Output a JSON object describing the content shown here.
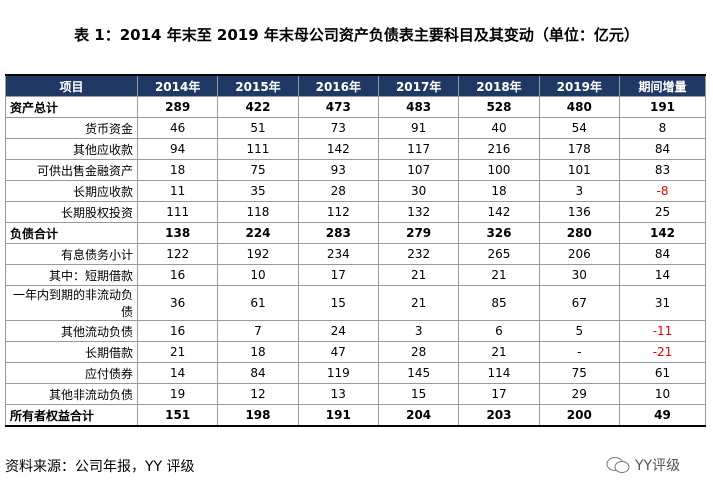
{
  "title": "表 1：2014 年末至 2019 年末母公司资产负债表主要科目及其变动（单位：亿元）",
  "table": {
    "header": [
      "项目",
      "2014年",
      "2015年",
      "2016年",
      "2017年",
      "2018年",
      "2019年",
      "期间增量"
    ],
    "rows": [
      [
        "资产总计",
        289,
        422,
        473,
        483,
        528,
        480,
        191
      ],
      [
        "货币资金",
        46,
        51,
        73,
        91,
        40,
        54,
        8
      ],
      [
        "其他应收款",
        94,
        111,
        142,
        117,
        216,
        178,
        84
      ],
      [
        "可供出售金融资产",
        18,
        75,
        93,
        107,
        100,
        101,
        83
      ],
      [
        "长期应收款",
        11,
        35,
        28,
        30,
        18,
        3,
        -8
      ],
      [
        "长期股权投资",
        111,
        118,
        112,
        132,
        142,
        136,
        25
      ],
      [
        "负债合计",
        138,
        224,
        283,
        279,
        326,
        280,
        142
      ],
      [
        "有息债务小计",
        122,
        192,
        234,
        232,
        265,
        206,
        84
      ],
      [
        "其中：短期借款",
        16,
        10,
        17,
        21,
        21,
        30,
        14
      ],
      [
        "一年内到期的非流动负债",
        36,
        61,
        15,
        21,
        85,
        67,
        31
      ],
      [
        "其他流动负债",
        16,
        7,
        24,
        3,
        6,
        5,
        -11
      ],
      [
        "长期借款",
        21,
        18,
        47,
        28,
        21,
        "-",
        -21
      ],
      [
        "应付债券",
        14,
        84,
        119,
        145,
        114,
        75,
        61
      ],
      [
        "其他非流动负债",
        19,
        12,
        13,
        15,
        17,
        29,
        10
      ],
      [
        "所有者权益合计",
        151,
        198,
        191,
        204,
        203,
        200,
        49
      ]
    ]
  },
  "footer": {
    "source": "资料来源：公司年报，YY 评级",
    "watermark": "YY评级"
  }
}
